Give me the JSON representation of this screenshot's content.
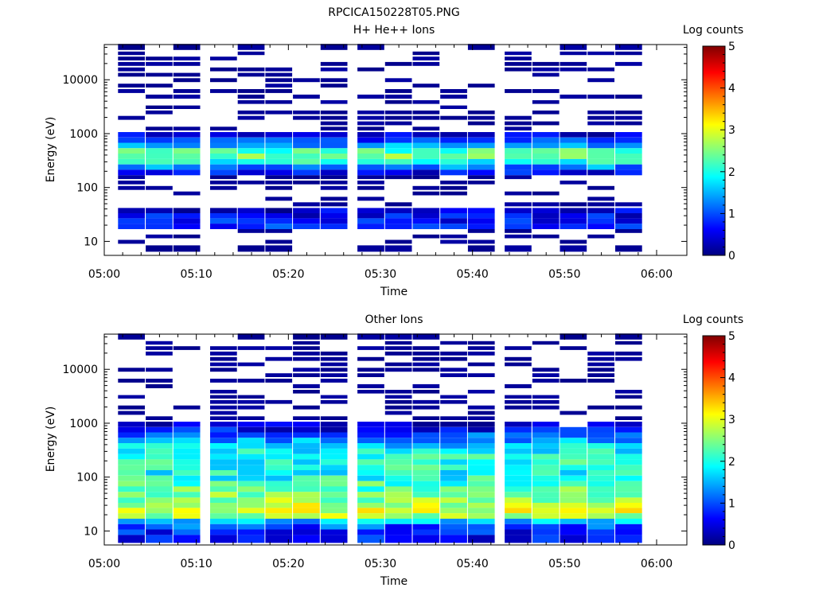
{
  "figure_title": "RPCICA150228T05.PNG",
  "colorscale": {
    "label": "Log counts",
    "min": 0,
    "max": 5,
    "ticks": [
      "0",
      "1",
      "2",
      "3",
      "4",
      "5"
    ],
    "stops": [
      "#000080",
      "#0000ff",
      "#0080ff",
      "#00ffff",
      "#80ff80",
      "#ffff00",
      "#ff8000",
      "#ff0000",
      "#800000"
    ]
  },
  "chart_data": [
    {
      "type": "heatmap",
      "title": "H+ He++ Ions",
      "xlabel": "Time",
      "ylabel": "Energy (eV)",
      "y_scale": "log",
      "xlim": [
        "05:00",
        "06:00"
      ],
      "ylim": [
        5.5,
        45000
      ],
      "x_ticks": [
        "05:00",
        "05:10",
        "05:20",
        "05:30",
        "05:40",
        "05:50",
        "06:00"
      ],
      "y_ticks": [
        "10",
        "100",
        "1000",
        "10000"
      ],
      "time_bins": [
        "05:03",
        "05:06",
        "05:09",
        "05:13",
        "05:16",
        "05:19",
        "05:22",
        "05:25",
        "05:29",
        "05:32",
        "05:35",
        "05:38",
        "05:41",
        "05:45",
        "05:48",
        "05:51",
        "05:54",
        "05:57"
      ],
      "energy_bands_eV": [
        {
          "e": 37000,
          "v": 0.1
        },
        {
          "e": 30000,
          "v": 0.1
        },
        {
          "e": 24000,
          "v": 0.1
        },
        {
          "e": 19000,
          "v": 0.1
        },
        {
          "e": 15000,
          "v": 0.1
        },
        {
          "e": 12000,
          "v": 0.1
        },
        {
          "e": 9500,
          "v": 0.1
        },
        {
          "e": 7500,
          "v": 0.1
        },
        {
          "e": 6000,
          "v": 0.1
        },
        {
          "e": 4700,
          "v": 0.1
        },
        {
          "e": 3700,
          "v": 0.1
        },
        {
          "e": 3000,
          "v": 0.1
        },
        {
          "e": 2400,
          "v": 0.15
        },
        {
          "e": 1900,
          "v": 0.15
        },
        {
          "e": 1500,
          "v": 0.2
        },
        {
          "e": 1200,
          "v": 0.25
        },
        {
          "e": 950,
          "v": 0.4
        },
        {
          "e": 760,
          "v": 0.8
        },
        {
          "e": 600,
          "v": 1.4
        },
        {
          "e": 480,
          "v": 2.2
        },
        {
          "e": 380,
          "v": 2.5
        },
        {
          "e": 300,
          "v": 2.0
        },
        {
          "e": 240,
          "v": 1.3
        },
        {
          "e": 190,
          "v": 0.6
        },
        {
          "e": 150,
          "v": 0.2
        },
        {
          "e": 120,
          "v": 0.15
        },
        {
          "e": 95,
          "v": 0.1
        },
        {
          "e": 75,
          "v": 0.1
        },
        {
          "e": 60,
          "v": 0.1
        },
        {
          "e": 47,
          "v": 0.15
        },
        {
          "e": 37,
          "v": 0.4
        },
        {
          "e": 30,
          "v": 0.6
        },
        {
          "e": 24,
          "v": 0.7
        },
        {
          "e": 19,
          "v": 0.8
        },
        {
          "e": 15,
          "v": 0.15
        },
        {
          "e": 12,
          "v": 0.1
        },
        {
          "e": 9.5,
          "v": 0.1
        },
        {
          "e": 7.5,
          "v": 0.1
        }
      ]
    },
    {
      "type": "heatmap",
      "title": "Other Ions",
      "xlabel": "Time",
      "ylabel": "Energy (eV)",
      "y_scale": "log",
      "xlim": [
        "05:00",
        "06:00"
      ],
      "ylim": [
        5.5,
        45000
      ],
      "x_ticks": [
        "05:00",
        "05:10",
        "05:20",
        "05:30",
        "05:40",
        "05:50",
        "06:00"
      ],
      "y_ticks": [
        "10",
        "100",
        "1000",
        "10000"
      ],
      "time_bins": [
        "05:03",
        "05:06",
        "05:09",
        "05:13",
        "05:16",
        "05:19",
        "05:22",
        "05:25",
        "05:29",
        "05:32",
        "05:35",
        "05:38",
        "05:41",
        "05:45",
        "05:48",
        "05:51",
        "05:54",
        "05:57"
      ],
      "energy_bands_eV": [
        {
          "e": 37000,
          "v": 0.05
        },
        {
          "e": 30000,
          "v": 0.05
        },
        {
          "e": 24000,
          "v": 0.05
        },
        {
          "e": 19000,
          "v": 0.05
        },
        {
          "e": 15000,
          "v": 0.05
        },
        {
          "e": 12000,
          "v": 0.05
        },
        {
          "e": 9500,
          "v": 0.05
        },
        {
          "e": 7500,
          "v": 0.05
        },
        {
          "e": 6000,
          "v": 0.05
        },
        {
          "e": 4700,
          "v": 0.05
        },
        {
          "e": 3700,
          "v": 0.05
        },
        {
          "e": 3000,
          "v": 0.05
        },
        {
          "e": 2400,
          "v": 0.08
        },
        {
          "e": 1900,
          "v": 0.08
        },
        {
          "e": 1500,
          "v": 0.1
        },
        {
          "e": 1200,
          "v": 0.15
        },
        {
          "e": 950,
          "v": 0.3
        },
        {
          "e": 760,
          "v": 0.6
        },
        {
          "e": 600,
          "v": 1.0
        },
        {
          "e": 480,
          "v": 1.4
        },
        {
          "e": 380,
          "v": 1.7
        },
        {
          "e": 300,
          "v": 1.9
        },
        {
          "e": 240,
          "v": 2.0
        },
        {
          "e": 190,
          "v": 2.0
        },
        {
          "e": 150,
          "v": 2.0
        },
        {
          "e": 120,
          "v": 1.9
        },
        {
          "e": 95,
          "v": 2.0
        },
        {
          "e": 75,
          "v": 2.2
        },
        {
          "e": 60,
          "v": 2.3
        },
        {
          "e": 47,
          "v": 2.4
        },
        {
          "e": 37,
          "v": 2.6
        },
        {
          "e": 30,
          "v": 2.8
        },
        {
          "e": 24,
          "v": 2.9
        },
        {
          "e": 19,
          "v": 2.7
        },
        {
          "e": 15,
          "v": 1.6
        },
        {
          "e": 12,
          "v": 1.0
        },
        {
          "e": 9.5,
          "v": 0.7
        },
        {
          "e": 7.5,
          "v": 0.7
        }
      ]
    }
  ]
}
